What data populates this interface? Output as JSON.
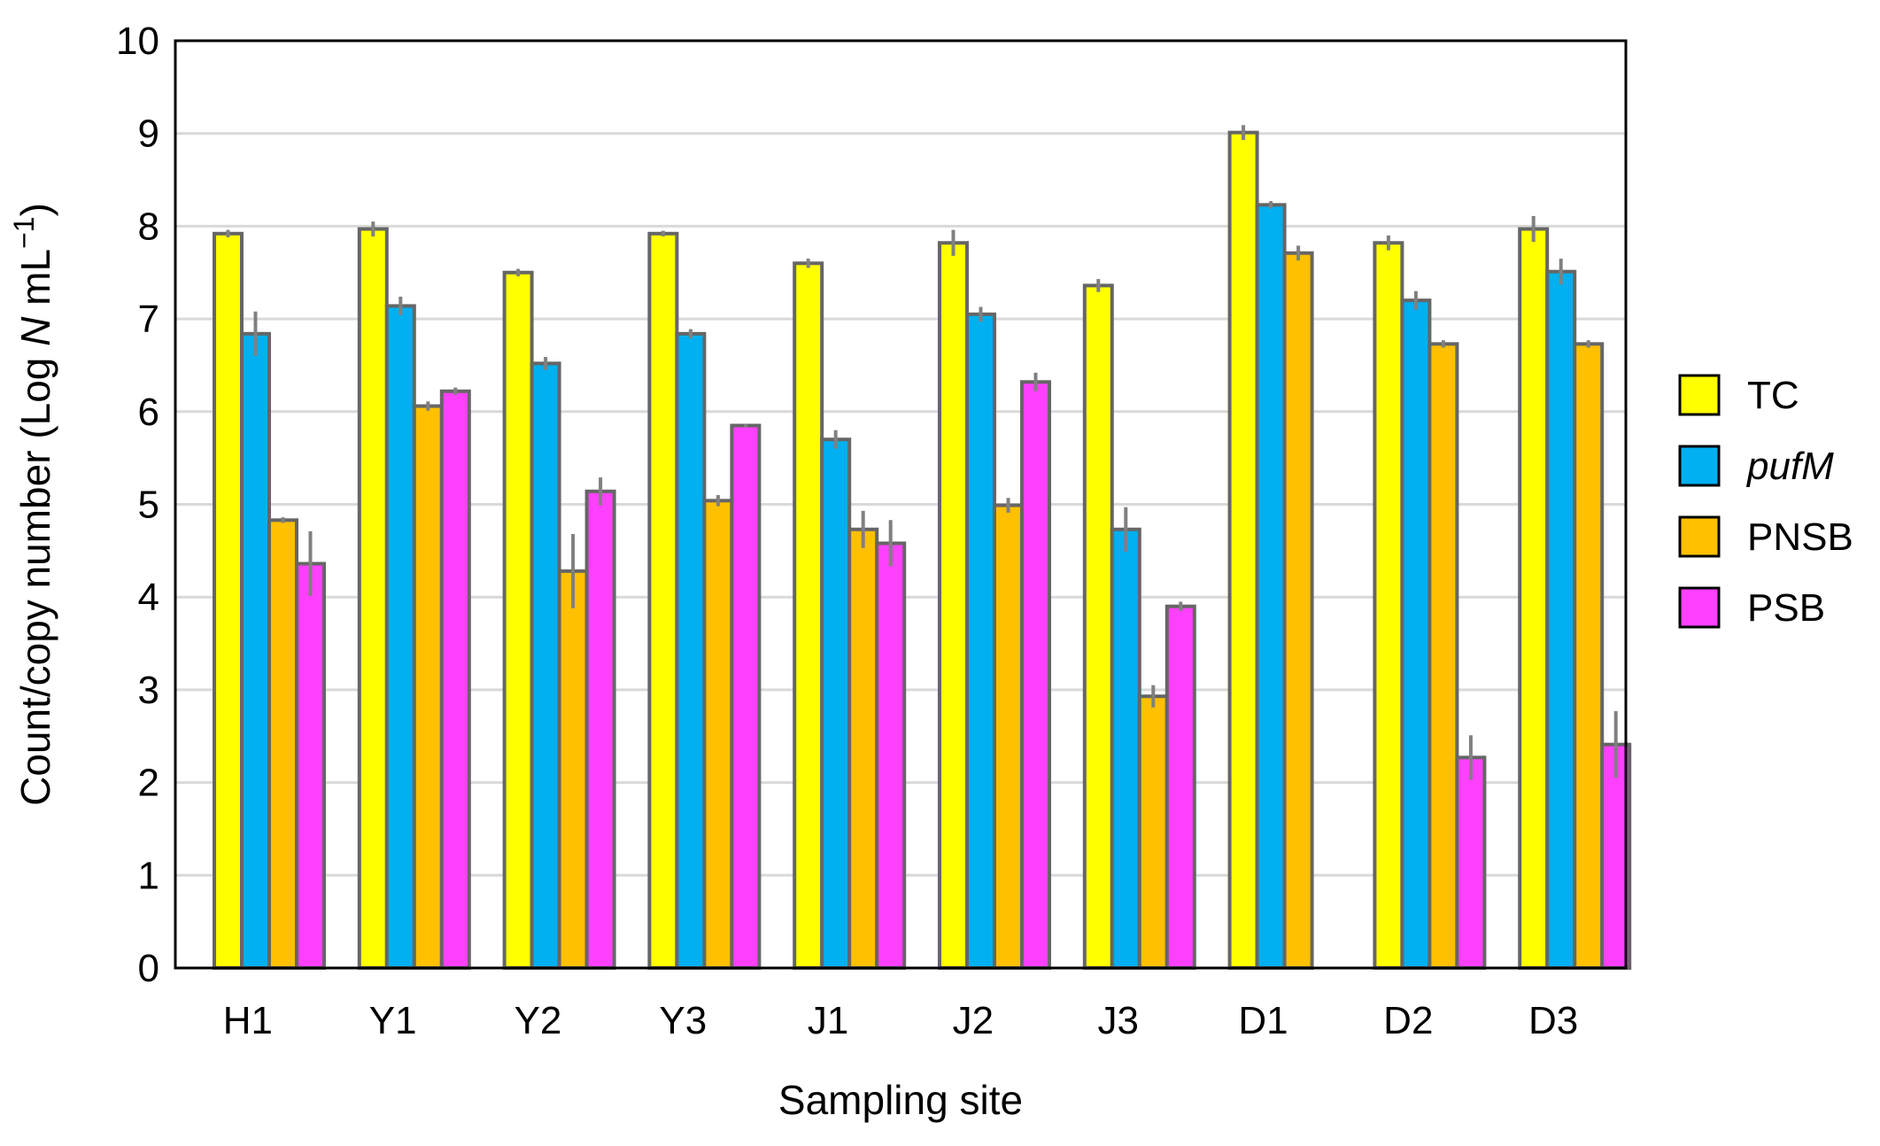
{
  "chart_data": {
    "type": "bar",
    "title": "",
    "xlabel": "Sampling site",
    "ylabel": {
      "prefix": "Count/copy number (Log ",
      "italic": "N",
      "mid": " mL",
      "sup": "−1",
      "suffix": ")"
    },
    "ylim": [
      0,
      10
    ],
    "yticks": [
      "0",
      "1",
      "2",
      "3",
      "4",
      "5",
      "6",
      "7",
      "8",
      "9",
      "10"
    ],
    "grid": true,
    "legend_position": "right",
    "categories": [
      "H1",
      "Y1",
      "Y2",
      "Y3",
      "J1",
      "J2",
      "J3",
      "D1",
      "D2",
      "D3"
    ],
    "series": [
      {
        "name": "TC",
        "italic": false,
        "color": "#FFFF00",
        "values": [
          7.92,
          7.97,
          7.5,
          7.92,
          7.6,
          7.82,
          7.36,
          9.01,
          7.82,
          7.97
        ],
        "errors": [
          0.04,
          0.08,
          0.04,
          0.03,
          0.05,
          0.14,
          0.07,
          0.08,
          0.08,
          0.14
        ]
      },
      {
        "name": "pufM",
        "italic": true,
        "color": "#00B0F0",
        "values": [
          6.84,
          7.14,
          6.52,
          6.84,
          5.7,
          7.05,
          4.73,
          8.23,
          7.2,
          7.51
        ],
        "errors": [
          0.24,
          0.1,
          0.07,
          0.05,
          0.1,
          0.08,
          0.24,
          0.04,
          0.1,
          0.14
        ]
      },
      {
        "name": "PNSB",
        "italic": false,
        "color": "#FFC000",
        "values": [
          4.83,
          6.06,
          4.28,
          5.04,
          4.73,
          4.99,
          2.93,
          7.71,
          6.73,
          6.73
        ],
        "errors": [
          0.03,
          0.05,
          0.4,
          0.06,
          0.2,
          0.08,
          0.12,
          0.08,
          0.04,
          0.04
        ]
      },
      {
        "name": "PSB",
        "italic": false,
        "color": "#FF40FF",
        "values": [
          4.36,
          6.22,
          5.14,
          5.85,
          4.58,
          6.32,
          3.9,
          null,
          2.27,
          2.41
        ],
        "errors": [
          0.35,
          0.04,
          0.15,
          0.02,
          0.25,
          0.1,
          0.05,
          null,
          0.24,
          0.36
        ]
      }
    ]
  }
}
